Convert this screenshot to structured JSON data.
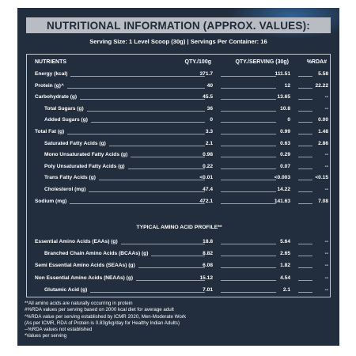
{
  "title": "NUTRITIONAL INFORMATION (APPROX. VALUES):",
  "serving": "Serving Size: 1 Level Scoop (30g)  |  Servings Per Container: 16",
  "headers": {
    "nutrients": "NUTRIENTS",
    "qty100": "QTY./100g",
    "qtyserving": "QTY./SERVING (30g)",
    "rda": "%RDA#"
  },
  "nutrients": [
    {
      "label": "Energy (kcal)",
      "qty100": "371.7",
      "qtyserving": "111.51",
      "rda": "5.58",
      "indent": false
    },
    {
      "label": "Protein (g)^",
      "qty100": "40",
      "qtyserving": "12",
      "rda": "22.22",
      "indent": false
    },
    {
      "label": "Carbohydrate (g)",
      "qty100": "45.5",
      "qtyserving": "13.65",
      "rda": "--",
      "indent": false
    },
    {
      "label": "Total Sugars (g)",
      "qty100": "36",
      "qtyserving": "10.8",
      "rda": "--",
      "indent": true
    },
    {
      "label": "Added Sugars (g)",
      "qty100": "0",
      "qtyserving": "0",
      "rda": "0.00",
      "indent": true
    },
    {
      "label": "Total Fat (g)",
      "qty100": "3.3",
      "qtyserving": "0.99",
      "rda": "1.48",
      "indent": false
    },
    {
      "label": "Saturated Fatty Acids (g)",
      "qty100": "2.1",
      "qtyserving": "0.63",
      "rda": "2.86",
      "indent": true
    },
    {
      "label": "Mono Unsaturated Fatty Acids (g)",
      "qty100": "0.98",
      "qtyserving": "0.29",
      "rda": "--",
      "indent": true
    },
    {
      "label": "Poly Unsaturated Fatty Acids (g)",
      "qty100": "0.22",
      "qtyserving": "0.07",
      "rda": "--",
      "indent": true
    },
    {
      "label": "Trans Fatty Acids (g)",
      "qty100": "<0.01",
      "qtyserving": "<0.003",
      "rda": "<0.15",
      "indent": true
    },
    {
      "label": "Cholesterol (mg)",
      "qty100": "47.4",
      "qtyserving": "14.22",
      "rda": "--",
      "indent": true
    },
    {
      "label": "Sodium (mg)",
      "qty100": "472.1",
      "qtyserving": "141.63",
      "rda": "7.08",
      "indent": false
    }
  ],
  "amino_title": "TYPICAL AMINO ACID PROFILE**",
  "amino": [
    {
      "label": "Essential Amino Acids (EAAs) (g)",
      "qty100": "18.8",
      "qtyserving": "5.64",
      "rda": "--",
      "indent": false
    },
    {
      "label": "Branched Chain Amino Acids (BCAAs) (g)",
      "qty100": "8.82",
      "qtyserving": "2.65",
      "rda": "--",
      "indent": true
    },
    {
      "label": "Semi Essential Amino Acids (SEAAs) (g)",
      "qty100": "6.08",
      "qtyserving": "1.82",
      "rda": "--",
      "indent": false
    },
    {
      "label": "Non Essential Amino Acids (NEAAs) (g)",
      "qty100": "15.12",
      "qtyserving": "4.54",
      "rda": "--",
      "indent": false
    },
    {
      "label": "Glutamic Acid (g)",
      "qty100": "7.01",
      "qtyserving": "2.1",
      "rda": "--",
      "indent": true
    }
  ],
  "footnotes": [
    "**All amino acids are naturally occurring in protein",
    "#%RDA values per serving based on 2000 kcal diet for average adult",
    "^%RDA value per serving established by ICMR 2020, Men-Moderate Work",
    "(As per ICMR, RDA of Protein is 0.83g/kg/day for Healthy Indian Adults)",
    "--%RDA values not established",
    "*Values per serving"
  ]
}
